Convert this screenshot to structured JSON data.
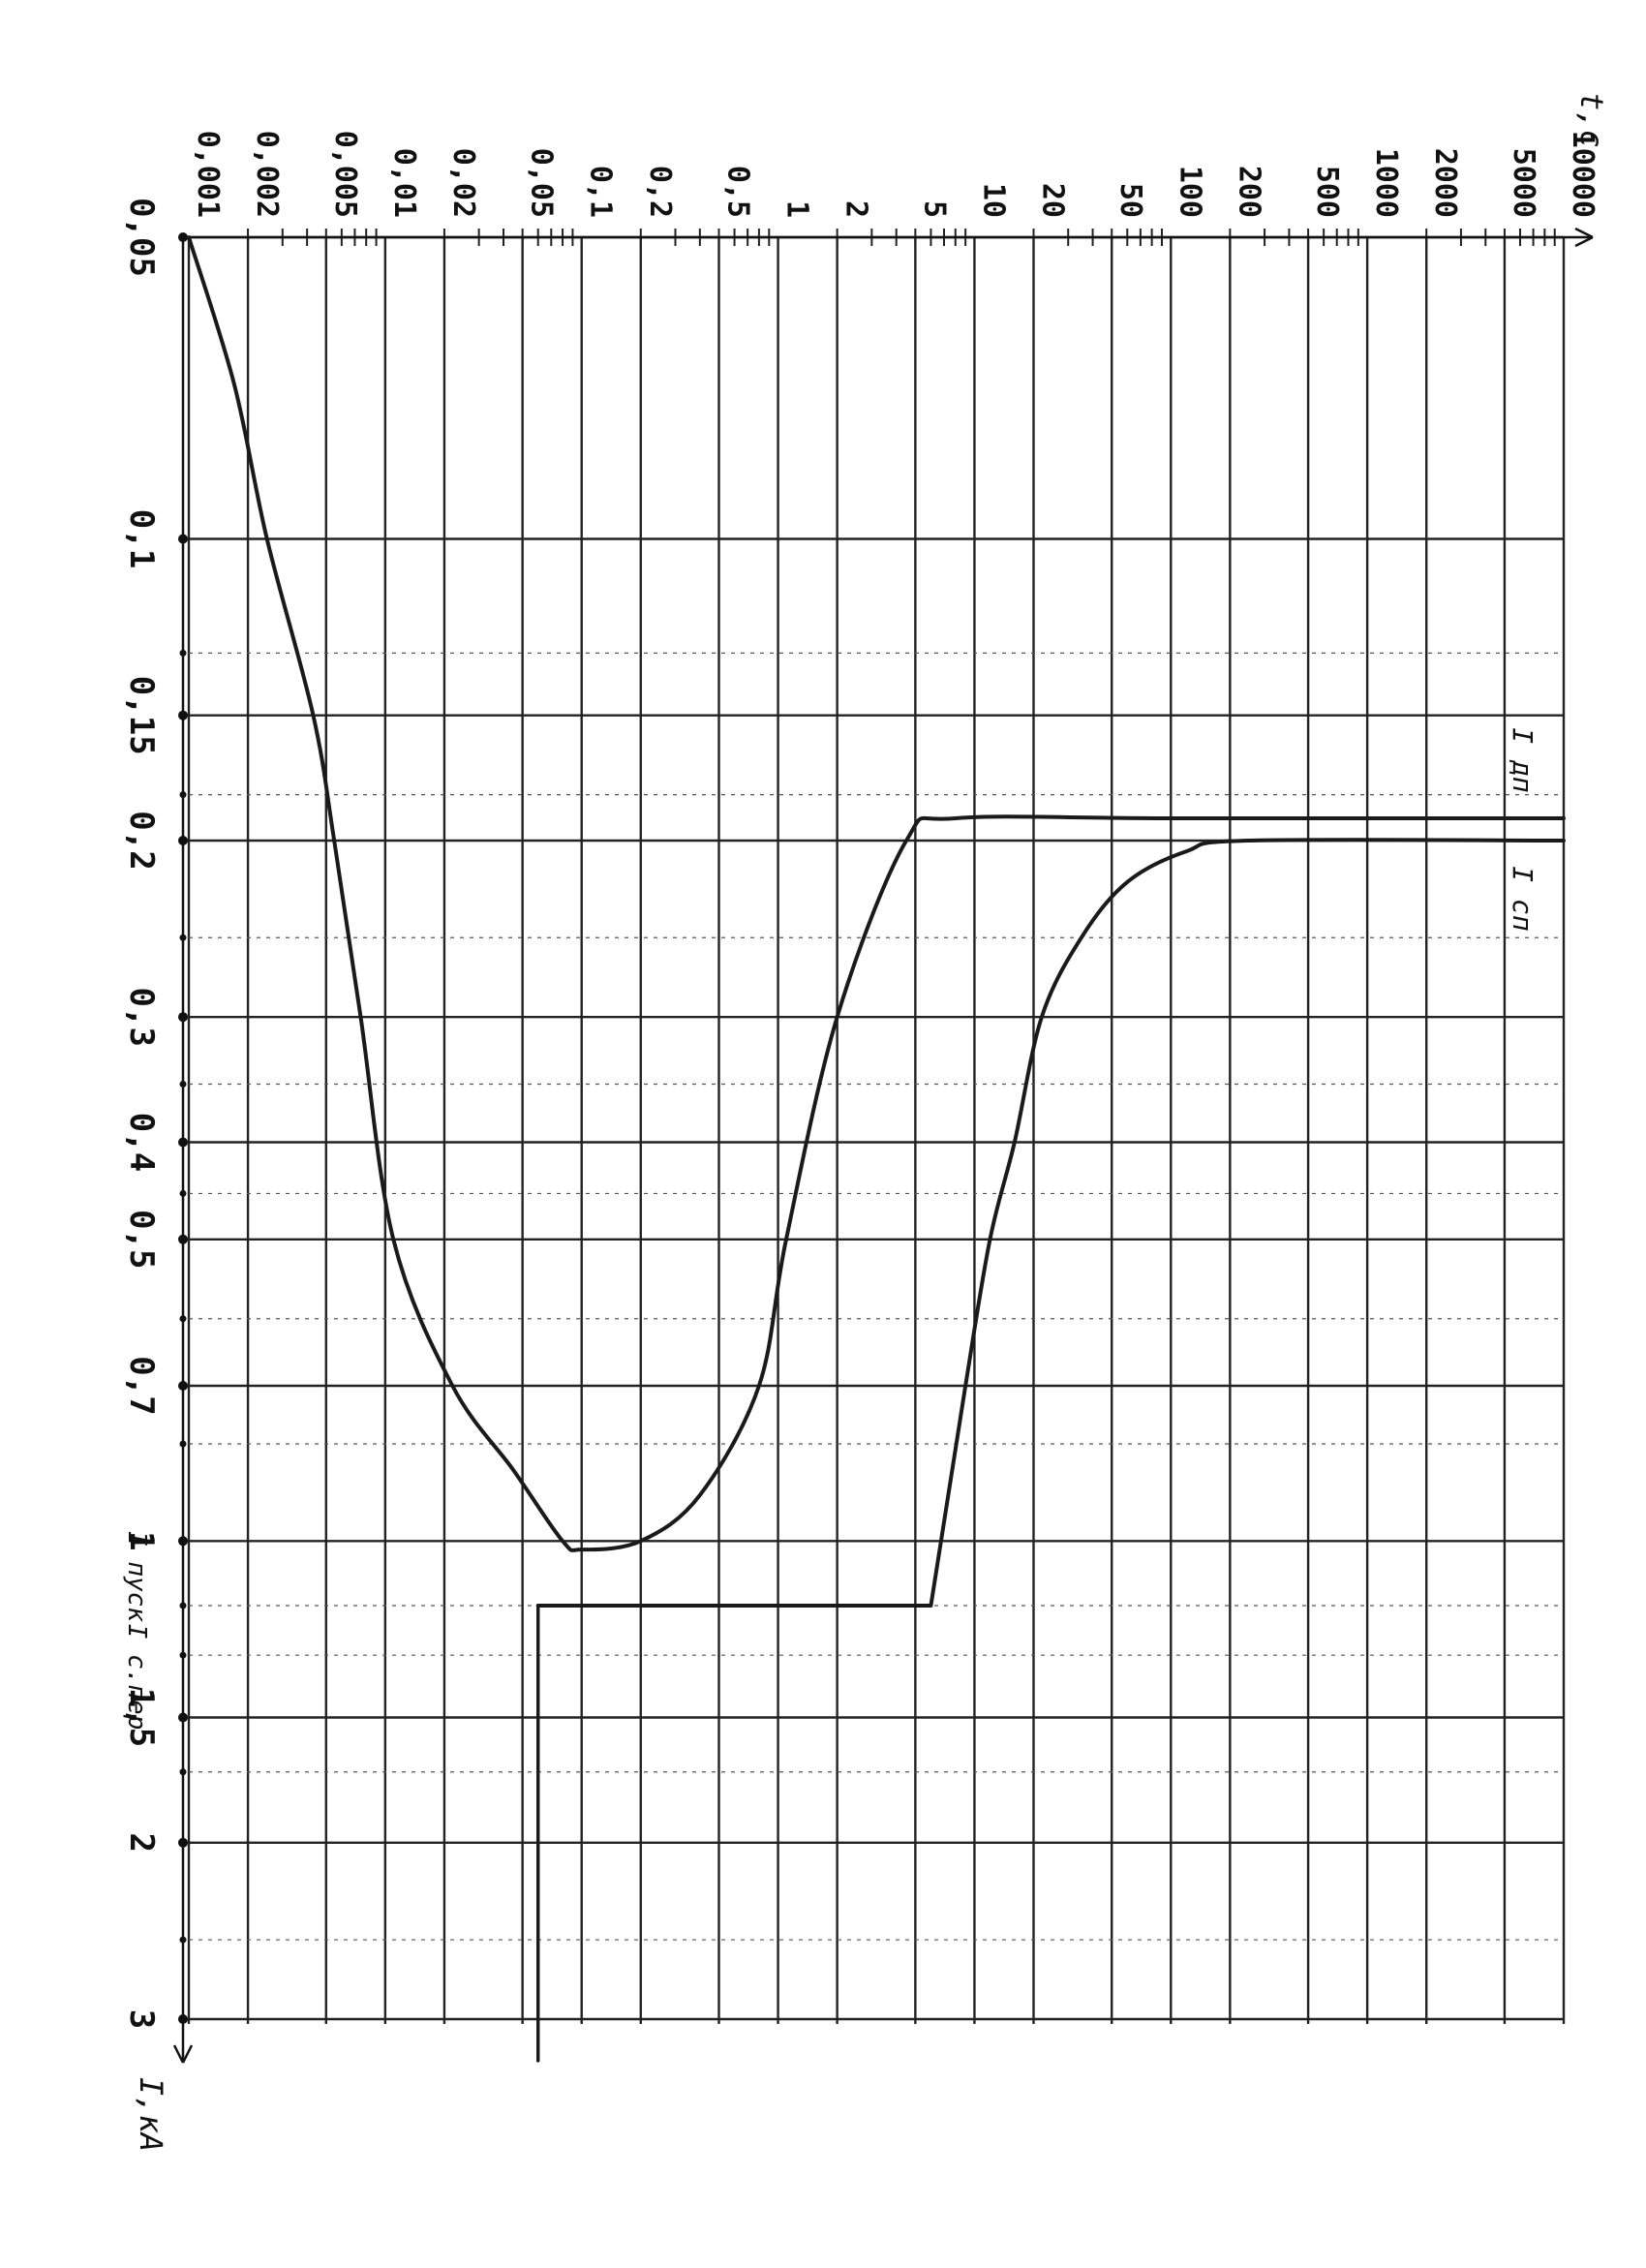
{
  "chart_data": {
    "type": "line",
    "orientation": "rotated 90° clockwise: time axis runs along the top (left to right), current axis runs down the left side (top to bottom)",
    "time_axis": {
      "label": "t,c",
      "scale": "log",
      "ticks": [
        "0,001",
        "0,002",
        "0,005",
        "0,01",
        "0,02",
        "0,05",
        "0,1",
        "0,2",
        "0,5",
        "1",
        "2",
        "5",
        "10",
        "20",
        "50",
        "100",
        "200",
        "500",
        "1000",
        "2000",
        "5000",
        "10000"
      ],
      "tick_values": [
        0.001,
        0.002,
        0.005,
        0.01,
        0.02,
        0.05,
        0.1,
        0.2,
        0.5,
        1,
        2,
        5,
        10,
        20,
        50,
        100,
        200,
        500,
        1000,
        2000,
        5000,
        10000
      ],
      "range": [
        0.001,
        10000
      ]
    },
    "current_axis": {
      "label": "I,кА",
      "scale": "log",
      "ticks": [
        "0,05",
        "0,1",
        "0,15",
        "0,2",
        "0,3",
        "0,4",
        "0,5",
        "0,7",
        "1",
        "1,5",
        "2",
        "3"
      ],
      "tick_values": [
        0.05,
        0.1,
        0.15,
        0.2,
        0.3,
        0.4,
        0.5,
        0.7,
        1,
        1.5,
        2,
        3
      ],
      "range": [
        0.05,
        3
      ]
    },
    "annotations": {
      "start_current_label": "I пуск",
      "start_current_sub": "пуск",
      "start_current_value": 1.16,
      "ocr_label": "I с.пер",
      "ocr_sub": "с.пер",
      "ocr_value": 1.25,
      "curve_labels": [
        "I дп",
        "I сп"
      ],
      "curve_label_subs": [
        "дп",
        "сп"
      ]
    },
    "series": [
      {
        "name": "I дп",
        "points": [
          {
            "current": 0.05,
            "time": 0.001
          },
          {
            "current": 0.07,
            "time": 0.0017
          },
          {
            "current": 0.1,
            "time": 0.0025
          },
          {
            "current": 0.15,
            "time": 0.0043
          },
          {
            "current": 0.2,
            "time": 0.0055
          },
          {
            "current": 0.3,
            "time": 0.0075
          },
          {
            "current": 0.5,
            "time": 0.011
          },
          {
            "current": 0.7,
            "time": 0.022
          },
          {
            "current": 0.85,
            "time": 0.045
          },
          {
            "current": 1.0,
            "time": 0.08
          },
          {
            "current": 1.02,
            "time": 0.1
          },
          {
            "current": 1.0,
            "time": 0.2
          },
          {
            "current": 0.9,
            "time": 0.4
          },
          {
            "current": 0.7,
            "time": 0.8
          },
          {
            "current": 0.5,
            "time": 1.1
          },
          {
            "current": 0.3,
            "time": 2.0
          },
          {
            "current": 0.2,
            "time": 4.5
          },
          {
            "current": 0.19,
            "time": 8
          },
          {
            "current": 0.19,
            "time": 100
          },
          {
            "current": 0.19,
            "time": 10000
          }
        ]
      },
      {
        "name": "I сп",
        "points": [
          {
            "current": 1.16,
            "time": 0.06
          },
          {
            "current": 1.16,
            "time": 6
          },
          {
            "current": 0.7,
            "time": 9
          },
          {
            "current": 0.5,
            "time": 12
          },
          {
            "current": 0.4,
            "time": 16
          },
          {
            "current": 0.3,
            "time": 22
          },
          {
            "current": 0.25,
            "time": 35
          },
          {
            "current": 0.22,
            "time": 60
          },
          {
            "current": 0.205,
            "time": 120
          },
          {
            "current": 0.2,
            "time": 250
          },
          {
            "current": 0.2,
            "time": 10000
          }
        ]
      },
      {
        "name": "",
        "points": [
          {
            "current": 1.16,
            "time": 0.06
          },
          {
            "current": 3.3,
            "time": 0.06
          }
        ]
      }
    ]
  }
}
